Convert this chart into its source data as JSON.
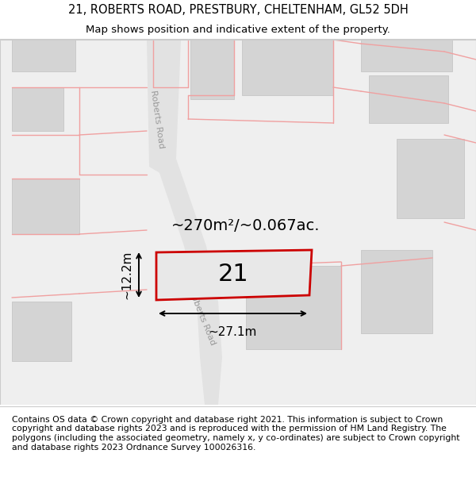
{
  "title_line1": "21, ROBERTS ROAD, PRESTBURY, CHELTENHAM, GL52 5DH",
  "title_line2": "Map shows position and indicative extent of the property.",
  "footer_text": "Contains OS data © Crown copyright and database right 2021. This information is subject to Crown copyright and database rights 2023 and is reproduced with the permission of HM Land Registry. The polygons (including the associated geometry, namely x, y co-ordinates) are subject to Crown copyright and database rights 2023 Ordnance Survey 100026316.",
  "area_label": "~270m²/~0.067ac.",
  "width_label": "~27.1m",
  "height_label": "~12.2m",
  "number_label": "21",
  "map_bg": "#efefef",
  "building_fill": "#d4d4d4",
  "building_edge": "#c0c0c0",
  "plot_fill": "#e8e8e8",
  "plot_edge": "#cc0000",
  "pink_line_color": "#f0a0a0",
  "road_fill": "#e0e0e0",
  "title_fontsize": 10.5,
  "subtitle_fontsize": 9.5,
  "footer_fontsize": 7.8,
  "area_fontsize": 14,
  "number_fontsize": 22,
  "dim_fontsize": 11
}
